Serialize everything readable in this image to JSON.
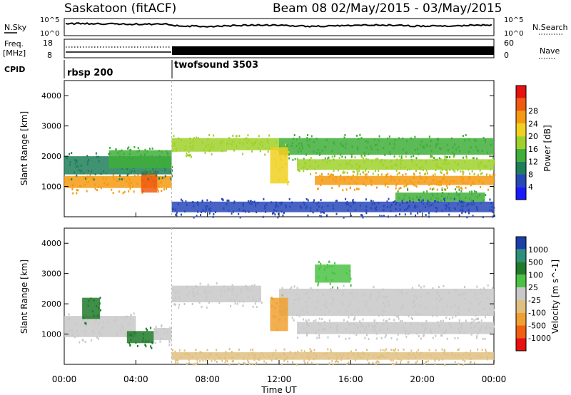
{
  "header": {
    "station": "Saskatoon (fitACF)",
    "beam": "Beam 08 02/May/2015 - 03/May/2015"
  },
  "nsky": {
    "label": "N.Sky",
    "right_label": "N.Search",
    "ticks": [
      "10^5",
      "10^0"
    ],
    "right_ticks": [
      "10^5",
      "10^0"
    ]
  },
  "freq": {
    "label_lines": [
      "Freq.",
      "[MHz]"
    ],
    "ticks": [
      "18",
      "8"
    ],
    "right_label": "Nave",
    "right_ticks": [
      "60",
      "0"
    ]
  },
  "cpid": {
    "label": "CPID",
    "segments": [
      {
        "label": "rbsp 200",
        "start_hour": 0
      },
      {
        "label": "twofsound 3503",
        "start_hour": 6
      }
    ]
  },
  "chart_data": [
    {
      "type": "heatmap",
      "title": "",
      "xlabel": "",
      "ylabel": "Slant Range [km]",
      "xlim": [
        0,
        24
      ],
      "ylim": [
        0,
        4500
      ],
      "yticks": [
        "1000",
        "2000",
        "3000",
        "4000"
      ],
      "colorbar": {
        "label": "Power [dB]",
        "ticks": [
          "4",
          "8",
          "12",
          "16",
          "20",
          "24",
          "28"
        ],
        "colors": [
          "#1a1aff",
          "#2848b8",
          "#1e7f5a",
          "#3fae3a",
          "#9fd12a",
          "#f0d020",
          "#f59a10",
          "#f05a10",
          "#e81010"
        ]
      },
      "bands": [
        {
          "start": 0.0,
          "end": 6.0,
          "range": [
            950,
            1350
          ],
          "power": 26
        },
        {
          "start": 4.3,
          "end": 5.2,
          "range": [
            800,
            1500
          ],
          "power": 30
        },
        {
          "start": 0.0,
          "end": 6.0,
          "range": [
            1400,
            2000
          ],
          "power": 10
        },
        {
          "start": 2.5,
          "end": 6.0,
          "range": [
            1600,
            2200
          ],
          "power": 14
        },
        {
          "start": 6.0,
          "end": 9.0,
          "range": [
            2150,
            2600
          ],
          "power": 16
        },
        {
          "start": 9.0,
          "end": 12.0,
          "range": [
            2200,
            2600
          ],
          "power": 18
        },
        {
          "start": 12.0,
          "end": 24.0,
          "range": [
            2050,
            2600
          ],
          "power": 14
        },
        {
          "start": 13.0,
          "end": 24.0,
          "range": [
            1550,
            1900
          ],
          "power": 18
        },
        {
          "start": 14.0,
          "end": 24.0,
          "range": [
            1050,
            1350
          ],
          "power": 24
        },
        {
          "start": 11.5,
          "end": 12.5,
          "range": [
            1100,
            2300
          ],
          "power": 20
        },
        {
          "start": 18.5,
          "end": 23.5,
          "range": [
            500,
            800
          ],
          "power": 12
        },
        {
          "start": 6.0,
          "end": 24.0,
          "range": [
            150,
            500
          ],
          "power": 6
        }
      ]
    },
    {
      "type": "heatmap",
      "title": "",
      "xlabel": "Time UT",
      "ylabel": "Slant Range [km]",
      "xlim": [
        0,
        24
      ],
      "ylim": [
        0,
        4500
      ],
      "xticks": [
        "00:00",
        "04:00",
        "08:00",
        "12:00",
        "16:00",
        "20:00",
        "00:00"
      ],
      "yticks": [
        "1000",
        "2000",
        "3000",
        "4000"
      ],
      "colorbar": {
        "label": "Velocity [m s^-1]",
        "ticks": [
          "1000",
          "500",
          "100",
          "25",
          "-25",
          "-100",
          "-500",
          "-1000"
        ],
        "colors": [
          "#1b3fa8",
          "#2e8f7a",
          "#1f7a2a",
          "#4bc244",
          "#c8c8c8",
          "#e0c080",
          "#f0a030",
          "#f06010",
          "#e81010"
        ]
      },
      "bands": [
        {
          "start": 0.0,
          "end": 4.0,
          "range": [
            900,
            1600
          ],
          "velocity": 0
        },
        {
          "start": 3.5,
          "end": 5.0,
          "range": [
            700,
            1100
          ],
          "velocity": 120
        },
        {
          "start": 5.0,
          "end": 6.0,
          "range": [
            800,
            1200
          ],
          "velocity": 0
        },
        {
          "start": 6.0,
          "end": 11.0,
          "range": [
            2050,
            2600
          ],
          "velocity": 0
        },
        {
          "start": 12.0,
          "end": 24.0,
          "range": [
            1600,
            2500
          ],
          "velocity": 0
        },
        {
          "start": 13.0,
          "end": 24.0,
          "range": [
            1000,
            1400
          ],
          "velocity": 0
        },
        {
          "start": 11.5,
          "end": 12.5,
          "range": [
            1100,
            2200
          ],
          "velocity": -300
        },
        {
          "start": 1.0,
          "end": 2.0,
          "range": [
            1500,
            2200
          ],
          "velocity": 300
        },
        {
          "start": 14.0,
          "end": 16.0,
          "range": [
            2700,
            3300
          ],
          "velocity": 60
        },
        {
          "start": 6.0,
          "end": 24.0,
          "range": [
            150,
            400
          ],
          "velocity": -60
        }
      ]
    }
  ]
}
